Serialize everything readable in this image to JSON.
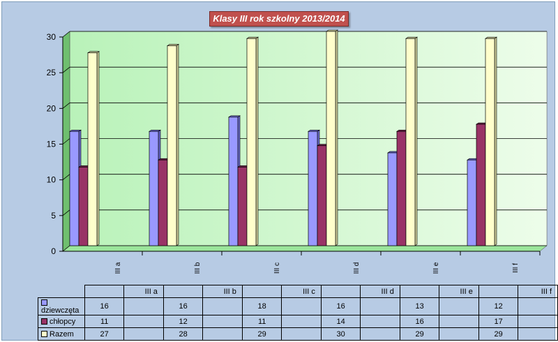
{
  "chart_data": {
    "type": "bar",
    "title": "Klasy III rok szkolny 2013/2014",
    "categories": [
      "III a",
      "III b",
      "III c",
      "III d",
      "III e",
      "III f"
    ],
    "series": [
      {
        "name": "dziewczęta",
        "values": [
          16,
          16,
          18,
          16,
          13,
          12
        ],
        "color": "#9999ff"
      },
      {
        "name": "chłopcy",
        "values": [
          11,
          12,
          11,
          14,
          16,
          17
        ],
        "color": "#993366"
      },
      {
        "name": "Razem",
        "values": [
          27,
          28,
          29,
          30,
          29,
          29
        ],
        "color": "#ffffcc"
      }
    ],
    "ylim": [
      0,
      30
    ],
    "yticks": [
      "0",
      "5",
      "10",
      "15",
      "20",
      "25",
      "30"
    ],
    "grid": true,
    "legend": "data table below chart"
  },
  "colors": {
    "background": "#b7cbe4",
    "plot_area": "#d4f8d4",
    "title_box": "#c0504d",
    "gridline": "#000000"
  }
}
